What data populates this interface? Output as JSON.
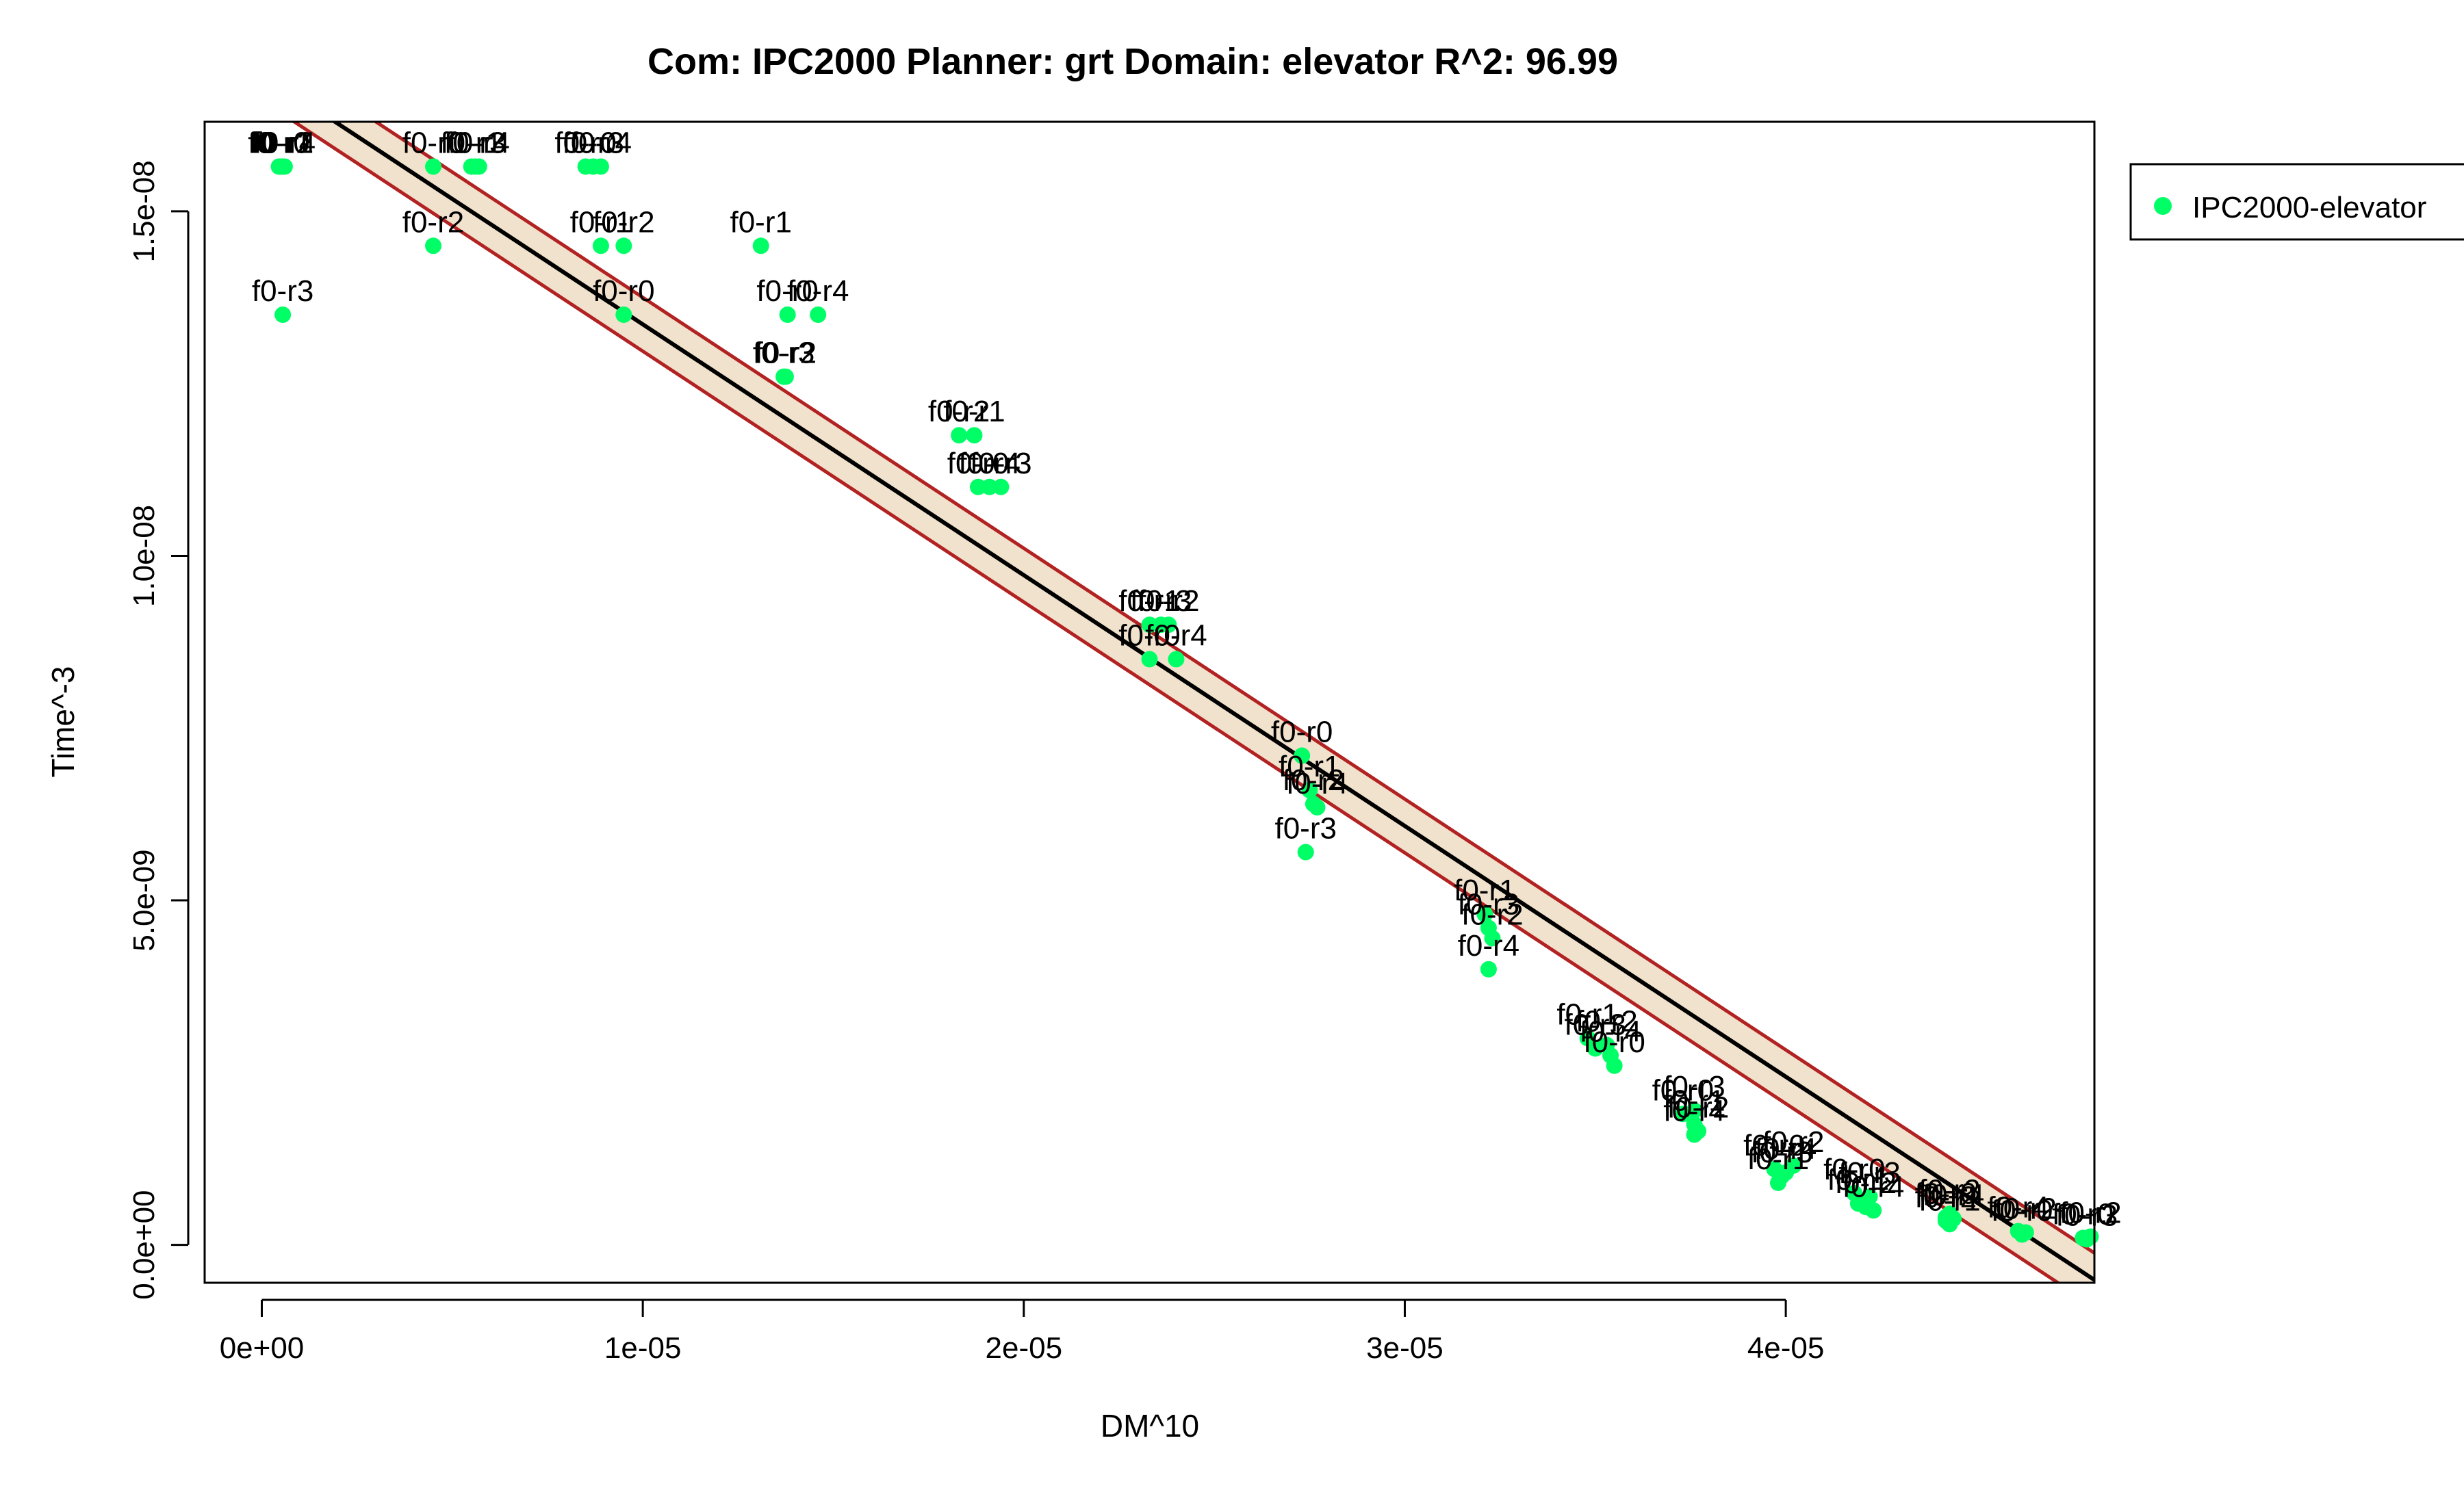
{
  "chart_data": {
    "type": "scatter",
    "title": "Com: IPC2000 Planner: grt Domain: elevator R^2: 96.99",
    "xlabel": "DM^10",
    "ylabel": "Time^-3",
    "xlim": [
      -1.5e-06,
      4.81e-05
    ],
    "ylim": [
      -5.5e-10,
      1.63e-08
    ],
    "x_ticks": [
      0,
      1e-05,
      2e-05,
      3e-05,
      4e-05
    ],
    "x_tick_labels": [
      "0e+00",
      "1e-05",
      "2e-05",
      "3e-05",
      "4e-05"
    ],
    "y_ticks": [
      0,
      5e-09,
      1e-08,
      1.5e-08
    ],
    "y_tick_labels": [
      "0.0e+00",
      "5.0e-09",
      "1.0e-08",
      "1.5e-08"
    ],
    "legend": {
      "position": "top-right",
      "entries": [
        {
          "label": "IPC2000-elevator",
          "color": "#00FF66"
        }
      ]
    },
    "colors": {
      "points": "#00FF66",
      "fit_line": "#000000",
      "band_edge": "#B22222",
      "band_fill": "#F0E2CC"
    },
    "fit": {
      "slope": -0.000364,
      "intercept": 1.7e-08,
      "band_halfwidth": 3.9e-10
    },
    "series": [
      {
        "name": "IPC2000-elevator",
        "points": [
          {
            "x": 4.5e-07,
            "y": 1.565e-08,
            "label": "f0-r0"
          },
          {
            "x": 5e-07,
            "y": 1.565e-08,
            "label": "f0-r1"
          },
          {
            "x": 5.5e-07,
            "y": 1.565e-08,
            "label": "f0-r2"
          },
          {
            "x": 6e-07,
            "y": 1.565e-08,
            "label": "f0-r4"
          },
          {
            "x": 5.5e-07,
            "y": 1.35e-08,
            "label": "f0-r3"
          },
          {
            "x": 4.5e-06,
            "y": 1.565e-08,
            "label": "f0-r0"
          },
          {
            "x": 5.5e-06,
            "y": 1.565e-08,
            "label": "f0-r1"
          },
          {
            "x": 5.6e-06,
            "y": 1.565e-08,
            "label": "f0-r3"
          },
          {
            "x": 5.7e-06,
            "y": 1.565e-08,
            "label": "f0-r4"
          },
          {
            "x": 4.5e-06,
            "y": 1.45e-08,
            "label": "f0-r2"
          },
          {
            "x": 8.5e-06,
            "y": 1.565e-08,
            "label": "f0-r0"
          },
          {
            "x": 8.7e-06,
            "y": 1.565e-08,
            "label": "f0-r3"
          },
          {
            "x": 8.9e-06,
            "y": 1.565e-08,
            "label": "f0-r4"
          },
          {
            "x": 8.9e-06,
            "y": 1.45e-08,
            "label": "f0-r1"
          },
          {
            "x": 9.5e-06,
            "y": 1.45e-08,
            "label": "f0-r2"
          },
          {
            "x": 9.5e-06,
            "y": 1.35e-08,
            "label": "f0-r0"
          },
          {
            "x": 1.31e-05,
            "y": 1.45e-08,
            "label": "f0-r1"
          },
          {
            "x": 1.38e-05,
            "y": 1.35e-08,
            "label": "f0-r0"
          },
          {
            "x": 1.46e-05,
            "y": 1.35e-08,
            "label": "f0-r4"
          },
          {
            "x": 1.37e-05,
            "y": 1.26e-08,
            "label": "f0-r3"
          },
          {
            "x": 1.375e-05,
            "y": 1.26e-08,
            "label": "f0-r2"
          },
          {
            "x": 1.83e-05,
            "y": 1.175e-08,
            "label": "f0-r2"
          },
          {
            "x": 1.87e-05,
            "y": 1.175e-08,
            "label": "f0-r1"
          },
          {
            "x": 1.88e-05,
            "y": 1.1e-08,
            "label": "f0-r0"
          },
          {
            "x": 1.91e-05,
            "y": 1.1e-08,
            "label": "f0-r4"
          },
          {
            "x": 1.94e-05,
            "y": 1.1e-08,
            "label": "f0-r3"
          },
          {
            "x": 2.33e-05,
            "y": 9e-09,
            "label": "f0-r1"
          },
          {
            "x": 2.36e-05,
            "y": 9e-09,
            "label": "f0-r3"
          },
          {
            "x": 2.38e-05,
            "y": 9e-09,
            "label": "f0-r2"
          },
          {
            "x": 2.33e-05,
            "y": 8.5e-09,
            "label": "f0-r0"
          },
          {
            "x": 2.4e-05,
            "y": 8.5e-09,
            "label": "f0-r4"
          },
          {
            "x": 2.73e-05,
            "y": 7.1e-09,
            "label": "f0-r0"
          },
          {
            "x": 2.75e-05,
            "y": 6.6e-09,
            "label": "f0-r1"
          },
          {
            "x": 2.76e-05,
            "y": 6.4e-09,
            "label": "f0-r2"
          },
          {
            "x": 2.77e-05,
            "y": 6.35e-09,
            "label": "f0-r4"
          },
          {
            "x": 2.74e-05,
            "y": 5.7e-09,
            "label": "f0-r3"
          },
          {
            "x": 3.21e-05,
            "y": 4.8e-09,
            "label": "f0-r1"
          },
          {
            "x": 3.22e-05,
            "y": 4.6e-09,
            "label": "f0-r3"
          },
          {
            "x": 3.23e-05,
            "y": 4.45e-09,
            "label": "f0-r2"
          },
          {
            "x": 3.22e-05,
            "y": 4e-09,
            "label": "f0-r4"
          },
          {
            "x": 3.48e-05,
            "y": 3e-09,
            "label": "f0-r1"
          },
          {
            "x": 3.5e-05,
            "y": 2.85e-09,
            "label": "f0-r3"
          },
          {
            "x": 3.53e-05,
            "y": 2.9e-09,
            "label": "f0-r2"
          },
          {
            "x": 3.55e-05,
            "y": 2.6e-09,
            "label": "f0-r0"
          },
          {
            "x": 3.54e-05,
            "y": 2.75e-09,
            "label": "f0-r4"
          },
          {
            "x": 3.73e-05,
            "y": 1.9e-09,
            "label": "f0-r0"
          },
          {
            "x": 3.76e-05,
            "y": 1.95e-09,
            "label": "f0-r3"
          },
          {
            "x": 3.76e-05,
            "y": 1.75e-09,
            "label": "f0-r1"
          },
          {
            "x": 3.76e-05,
            "y": 1.6e-09,
            "label": "f0-r4"
          },
          {
            "x": 3.77e-05,
            "y": 1.65e-09,
            "label": "f0-r2"
          },
          {
            "x": 3.97e-05,
            "y": 1.1e-09,
            "label": "f0-r0"
          },
          {
            "x": 3.99e-05,
            "y": 1e-09,
            "label": "f0-r3"
          },
          {
            "x": 4e-05,
            "y": 1.05e-09,
            "label": "f0-r4"
          },
          {
            "x": 4.02e-05,
            "y": 1.15e-09,
            "label": "f0-r2"
          },
          {
            "x": 3.98e-05,
            "y": 9e-10,
            "label": "f0-r1"
          },
          {
            "x": 4.18e-05,
            "y": 7.5e-10,
            "label": "f0-r0"
          },
          {
            "x": 4.19e-05,
            "y": 6e-10,
            "label": "f0-r1"
          },
          {
            "x": 4.21e-05,
            "y": 5.5e-10,
            "label": "f0-r2"
          },
          {
            "x": 4.22e-05,
            "y": 7e-10,
            "label": "f0-r3"
          },
          {
            "x": 4.23e-05,
            "y": 5e-10,
            "label": "f0-r4"
          },
          {
            "x": 4.42e-05,
            "y": 4e-10,
            "label": "f0-r0"
          },
          {
            "x": 4.43e-05,
            "y": 3e-10,
            "label": "f0-r1"
          },
          {
            "x": 4.42e-05,
            "y": 3.5e-10,
            "label": "f0-r2"
          },
          {
            "x": 4.43e-05,
            "y": 4.5e-10,
            "label": "f0-r3"
          },
          {
            "x": 4.44e-05,
            "y": 3.8e-10,
            "label": "f0-r4"
          },
          {
            "x": 4.61e-05,
            "y": 2e-10,
            "label": "f0-r4"
          },
          {
            "x": 4.62e-05,
            "y": 1.5e-10,
            "label": "f0-r0"
          },
          {
            "x": 4.63e-05,
            "y": 1.8e-10,
            "label": "f0-r2"
          },
          {
            "x": 4.78e-05,
            "y": 1e-10,
            "label": "f0-r0"
          },
          {
            "x": 4.79e-05,
            "y": 8e-11,
            "label": "f0-r3"
          },
          {
            "x": 4.8e-05,
            "y": 1.2e-10,
            "label": "f0-r2"
          }
        ]
      }
    ]
  }
}
